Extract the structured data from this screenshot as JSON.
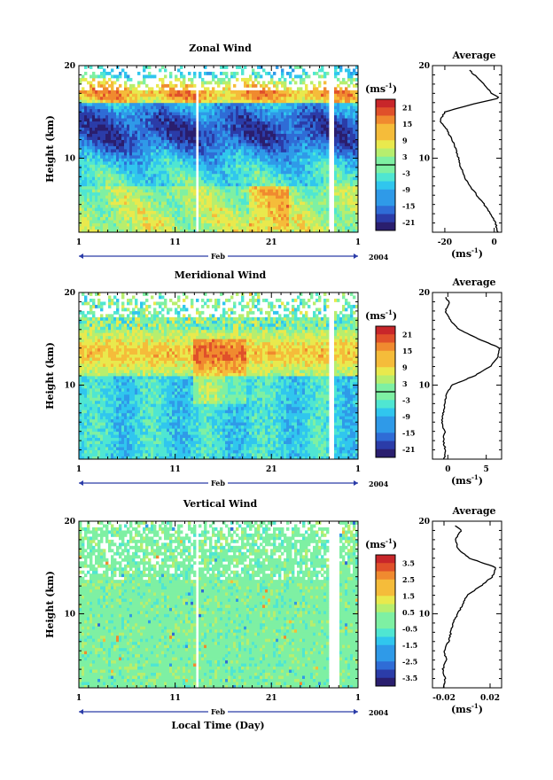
{
  "figure": {
    "xlabel": "Local Time (Day)",
    "ylabel": "Height (km)",
    "month_label": "Feb",
    "year_label": "2004",
    "unit_label": "(ms",
    "unit_exp": "-1",
    "average_title": "Average"
  },
  "chart_data": [
    {
      "type": "heatmap",
      "title": "Zonal Wind",
      "xlabel": "Local Time (Day)",
      "ylabel": "Height (km)",
      "x_ticks": [
        "1",
        "11",
        "21",
        "1"
      ],
      "y_ticks": [
        "10",
        "20"
      ],
      "ylim": [
        2,
        20
      ],
      "colorbar": {
        "unit": "(ms-1)",
        "ticks": [
          "21",
          "15",
          "9",
          "3",
          "-3",
          "-9",
          "-15",
          "-21"
        ],
        "range": [
          -24,
          24
        ],
        "zero_line": 0
      },
      "description_values": {
        "jet_height_km": 16.5,
        "jet_speed_ms": 18,
        "easterly_band_km": [
          8,
          15
        ],
        "easterly_speed_ms": -15,
        "lower_westerly_km": [
          2,
          7
        ]
      },
      "average_profile": {
        "title": "Average",
        "xlabel": "(ms-1)",
        "x_ticks": [
          "-20",
          "0"
        ],
        "xlim": [
          -25,
          3
        ],
        "y_ticks": [
          "10",
          "20"
        ],
        "height": [
          2,
          3,
          4,
          5,
          6,
          7,
          8,
          9,
          10,
          11,
          12,
          13,
          14,
          15,
          16,
          16.5,
          17,
          18,
          19,
          19.5
        ],
        "value": [
          1.5,
          0.5,
          -1.5,
          -4,
          -7,
          -10,
          -12,
          -13.5,
          -14.5,
          -15.5,
          -17,
          -19,
          -22,
          -20,
          -6,
          2,
          -1,
          -4,
          -8,
          -10
        ]
      }
    },
    {
      "type": "heatmap",
      "title": "Meridional Wind",
      "xlabel": "Local Time (Day)",
      "ylabel": "Height (km)",
      "x_ticks": [
        "1",
        "11",
        "21",
        "1"
      ],
      "y_ticks": [
        "10",
        "20"
      ],
      "ylim": [
        2,
        20
      ],
      "colorbar": {
        "unit": "(ms-1)",
        "ticks": [
          "21",
          "15",
          "9",
          "3",
          "-3",
          "-9",
          "-15",
          "-21"
        ],
        "range": [
          -24,
          24
        ],
        "zero_line": 0
      },
      "average_profile": {
        "title": "Average",
        "xlabel": "(ms-1)",
        "x_ticks": [
          "0",
          "5"
        ],
        "xlim": [
          -2,
          7
        ],
        "y_ticks": [
          "10",
          "20"
        ],
        "height": [
          2,
          3,
          4,
          5,
          6,
          7,
          8,
          9,
          10,
          11,
          12,
          13,
          14,
          15,
          16,
          17,
          18,
          19,
          19.5
        ],
        "value": [
          -0.5,
          -0.3,
          -0.6,
          -0.4,
          -0.8,
          -0.6,
          -0.4,
          -0.2,
          0.5,
          3.5,
          5.5,
          6.5,
          6.8,
          4,
          1.5,
          0.3,
          -0.3,
          0.2,
          -0.3
        ]
      }
    },
    {
      "type": "heatmap",
      "title": "Vertical Wind",
      "xlabel": "Local Time (Day)",
      "ylabel": "Height (km)",
      "x_ticks": [
        "1",
        "11",
        "21",
        "1"
      ],
      "y_ticks": [
        "10",
        "20"
      ],
      "ylim": [
        2,
        20
      ],
      "colorbar": {
        "unit": "(ms-1)",
        "ticks": [
          "3.5",
          "2.5",
          "1.5",
          "0.5",
          "-0.5",
          "-1.5",
          "-2.5",
          "-3.5"
        ],
        "range": [
          -4,
          4
        ]
      },
      "average_profile": {
        "title": "Average",
        "xlabel": "(ms-1)",
        "x_ticks": [
          "-0.02",
          "0.02"
        ],
        "xlim": [
          -0.03,
          0.03
        ],
        "y_ticks": [
          "10",
          "20"
        ],
        "height": [
          2,
          3,
          4,
          5,
          6,
          7,
          8,
          9,
          10,
          11,
          12,
          13,
          14,
          15,
          16,
          17,
          18,
          19,
          19.5
        ],
        "value": [
          -0.02,
          -0.019,
          -0.021,
          -0.018,
          -0.02,
          -0.016,
          -0.014,
          -0.012,
          -0.008,
          -0.004,
          0.0,
          0.012,
          0.022,
          0.025,
          0.002,
          -0.008,
          -0.01,
          -0.005,
          -0.01
        ]
      }
    }
  ]
}
